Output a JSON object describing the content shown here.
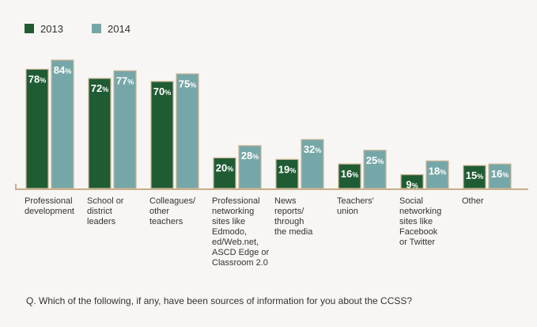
{
  "chart_data": {
    "type": "bar",
    "title": "",
    "xlabel": "",
    "ylabel": "",
    "ylim": [
      0,
      100
    ],
    "grid": false,
    "legend_position": "top-left",
    "categories": [
      [
        "Professional",
        "development"
      ],
      [
        "School or",
        "district",
        "leaders"
      ],
      [
        "Colleagues/",
        "other",
        "teachers"
      ],
      [
        "Professional",
        "networking",
        "sites like",
        "Edmodo,",
        "ed/Web.net,",
        "ASCD Edge or",
        "Classroom 2.0"
      ],
      [
        "News",
        "reports/",
        "through",
        "the media"
      ],
      [
        "Teachers'",
        "union"
      ],
      [
        "Social",
        "networking",
        "sites like",
        "Facebook",
        "or Twitter"
      ],
      [
        "Other"
      ]
    ],
    "series": [
      {
        "name": "2013",
        "color": "#1f5c34",
        "values": [
          78,
          72,
          70,
          20,
          19,
          16,
          9,
          15
        ]
      },
      {
        "name": "2014",
        "color": "#76a7a8",
        "values": [
          84,
          77,
          75,
          28,
          32,
          25,
          18,
          16
        ]
      }
    ],
    "value_suffix": "%",
    "footnote": "Q. Which of the following, if any, have been sources of information for you about the CCSS?"
  }
}
